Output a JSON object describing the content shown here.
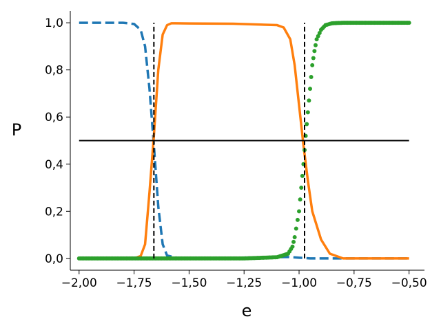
{
  "chart_data": {
    "type": "line",
    "title": "",
    "xlabel": "e",
    "ylabel": "P",
    "xlim": [
      -2.04,
      -0.43
    ],
    "ylim": [
      -0.05,
      1.05
    ],
    "x_ticks": [
      -2.0,
      -1.75,
      -1.5,
      -1.25,
      -1.0,
      -0.75,
      -0.5
    ],
    "x_tick_labels": [
      "−2,00",
      "−1,75",
      "−1,50",
      "−1,25",
      "−1,00",
      "−0,75",
      "−0,50"
    ],
    "y_ticks": [
      0.0,
      0.2,
      0.4,
      0.6,
      0.8,
      1.0
    ],
    "y_tick_labels": [
      "0,0",
      "0,2",
      "0,4",
      "0,6",
      "0,8",
      "1,0"
    ],
    "grid": false,
    "legend": "none",
    "series": [
      {
        "style": "dashed-line",
        "color": "#1f77b4",
        "points": [
          [
            -2.0,
            1.0
          ],
          [
            -1.9,
            1.0
          ],
          [
            -1.8,
            1.0
          ],
          [
            -1.75,
            0.995
          ],
          [
            -1.72,
            0.97
          ],
          [
            -1.7,
            0.9
          ],
          [
            -1.68,
            0.72
          ],
          [
            -1.66,
            0.48
          ],
          [
            -1.64,
            0.22
          ],
          [
            -1.62,
            0.06
          ],
          [
            -1.6,
            0.012
          ],
          [
            -1.55,
            0.002
          ],
          [
            -1.5,
            0.002
          ],
          [
            -1.3,
            0.003
          ],
          [
            -1.1,
            0.005
          ],
          [
            -1.05,
            0.006
          ],
          [
            -1.0,
            0.003
          ],
          [
            -0.95,
            0.0
          ],
          [
            -0.5,
            0.0
          ]
        ]
      },
      {
        "style": "line",
        "color": "#ff7f0e",
        "points": [
          [
            -2.0,
            0.0
          ],
          [
            -1.75,
            0.0
          ],
          [
            -1.72,
            0.01
          ],
          [
            -1.7,
            0.06
          ],
          [
            -1.68,
            0.28
          ],
          [
            -1.66,
            0.52
          ],
          [
            -1.64,
            0.8
          ],
          [
            -1.62,
            0.95
          ],
          [
            -1.6,
            0.99
          ],
          [
            -1.58,
            0.998
          ],
          [
            -1.5,
            0.997
          ],
          [
            -1.3,
            0.996
          ],
          [
            -1.1,
            0.99
          ],
          [
            -1.07,
            0.98
          ],
          [
            -1.04,
            0.93
          ],
          [
            -1.02,
            0.82
          ],
          [
            -1.0,
            0.65
          ],
          [
            -0.98,
            0.48
          ],
          [
            -0.96,
            0.33
          ],
          [
            -0.94,
            0.2
          ],
          [
            -0.9,
            0.08
          ],
          [
            -0.86,
            0.02
          ],
          [
            -0.8,
            0.0
          ],
          [
            -0.5,
            0.0
          ]
        ]
      },
      {
        "style": "points",
        "color": "#2ca02c",
        "points": [
          [
            -2.0,
            0.0
          ],
          [
            -1.75,
            0.0
          ],
          [
            -1.5,
            0.0
          ],
          [
            -1.25,
            0.0
          ],
          [
            -1.1,
            0.005
          ],
          [
            -1.05,
            0.02
          ],
          [
            -1.03,
            0.05
          ],
          [
            -1.02,
            0.09
          ],
          [
            -1.0,
            0.2
          ],
          [
            -0.99,
            0.3
          ],
          [
            -0.98,
            0.4
          ],
          [
            -0.97,
            0.52
          ],
          [
            -0.96,
            0.62
          ],
          [
            -0.95,
            0.72
          ],
          [
            -0.94,
            0.82
          ],
          [
            -0.93,
            0.88
          ],
          [
            -0.92,
            0.93
          ],
          [
            -0.9,
            0.97
          ],
          [
            -0.88,
            0.99
          ],
          [
            -0.85,
            0.998
          ],
          [
            -0.8,
            1.0
          ],
          [
            -0.5,
            1.0
          ]
        ]
      }
    ],
    "reference_lines": [
      {
        "orientation": "horizontal",
        "y": 0.5,
        "x_from": -2.0,
        "x_to": -0.5,
        "style": "solid",
        "color": "#000000"
      },
      {
        "orientation": "vertical",
        "x": -1.66,
        "y_from": 0.0,
        "y_to": 1.0,
        "style": "dashed",
        "color": "#000000"
      },
      {
        "orientation": "vertical",
        "x": -0.975,
        "y_from": 0.0,
        "y_to": 1.0,
        "style": "dashed",
        "color": "#000000"
      }
    ]
  }
}
